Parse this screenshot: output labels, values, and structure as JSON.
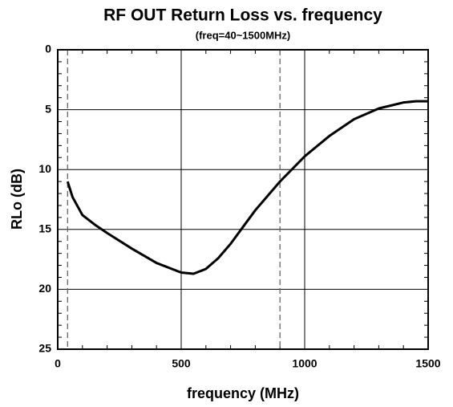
{
  "chart_data": {
    "type": "line",
    "title": "RF OUT Return Loss vs. frequency",
    "subtitle": "(freq=40~1500MHz)",
    "x_label": "frequency (MHz)",
    "y_label": "RLo (dB)",
    "x": [
      40,
      60,
      100,
      150,
      200,
      300,
      400,
      500,
      550,
      600,
      650,
      700,
      750,
      800,
      900,
      1000,
      1100,
      1200,
      1300,
      1400,
      1450,
      1500
    ],
    "series": [
      {
        "name": "RLo",
        "color": "#000000",
        "values": [
          11.0,
          12.3,
          13.8,
          14.6,
          15.3,
          16.6,
          17.8,
          18.6,
          18.7,
          18.3,
          17.4,
          16.2,
          14.8,
          13.4,
          11.0,
          8.9,
          7.2,
          5.8,
          4.9,
          4.4,
          4.3,
          4.3
        ]
      }
    ],
    "xlim": [
      0,
      1500
    ],
    "xticks": [
      0,
      500,
      1000,
      1500
    ],
    "ylim": [
      0,
      25
    ],
    "yticks": [
      0,
      5,
      10,
      15,
      20,
      25
    ],
    "y_inverted": true,
    "grid": true,
    "dashed_vlines": [
      40,
      900
    ]
  }
}
